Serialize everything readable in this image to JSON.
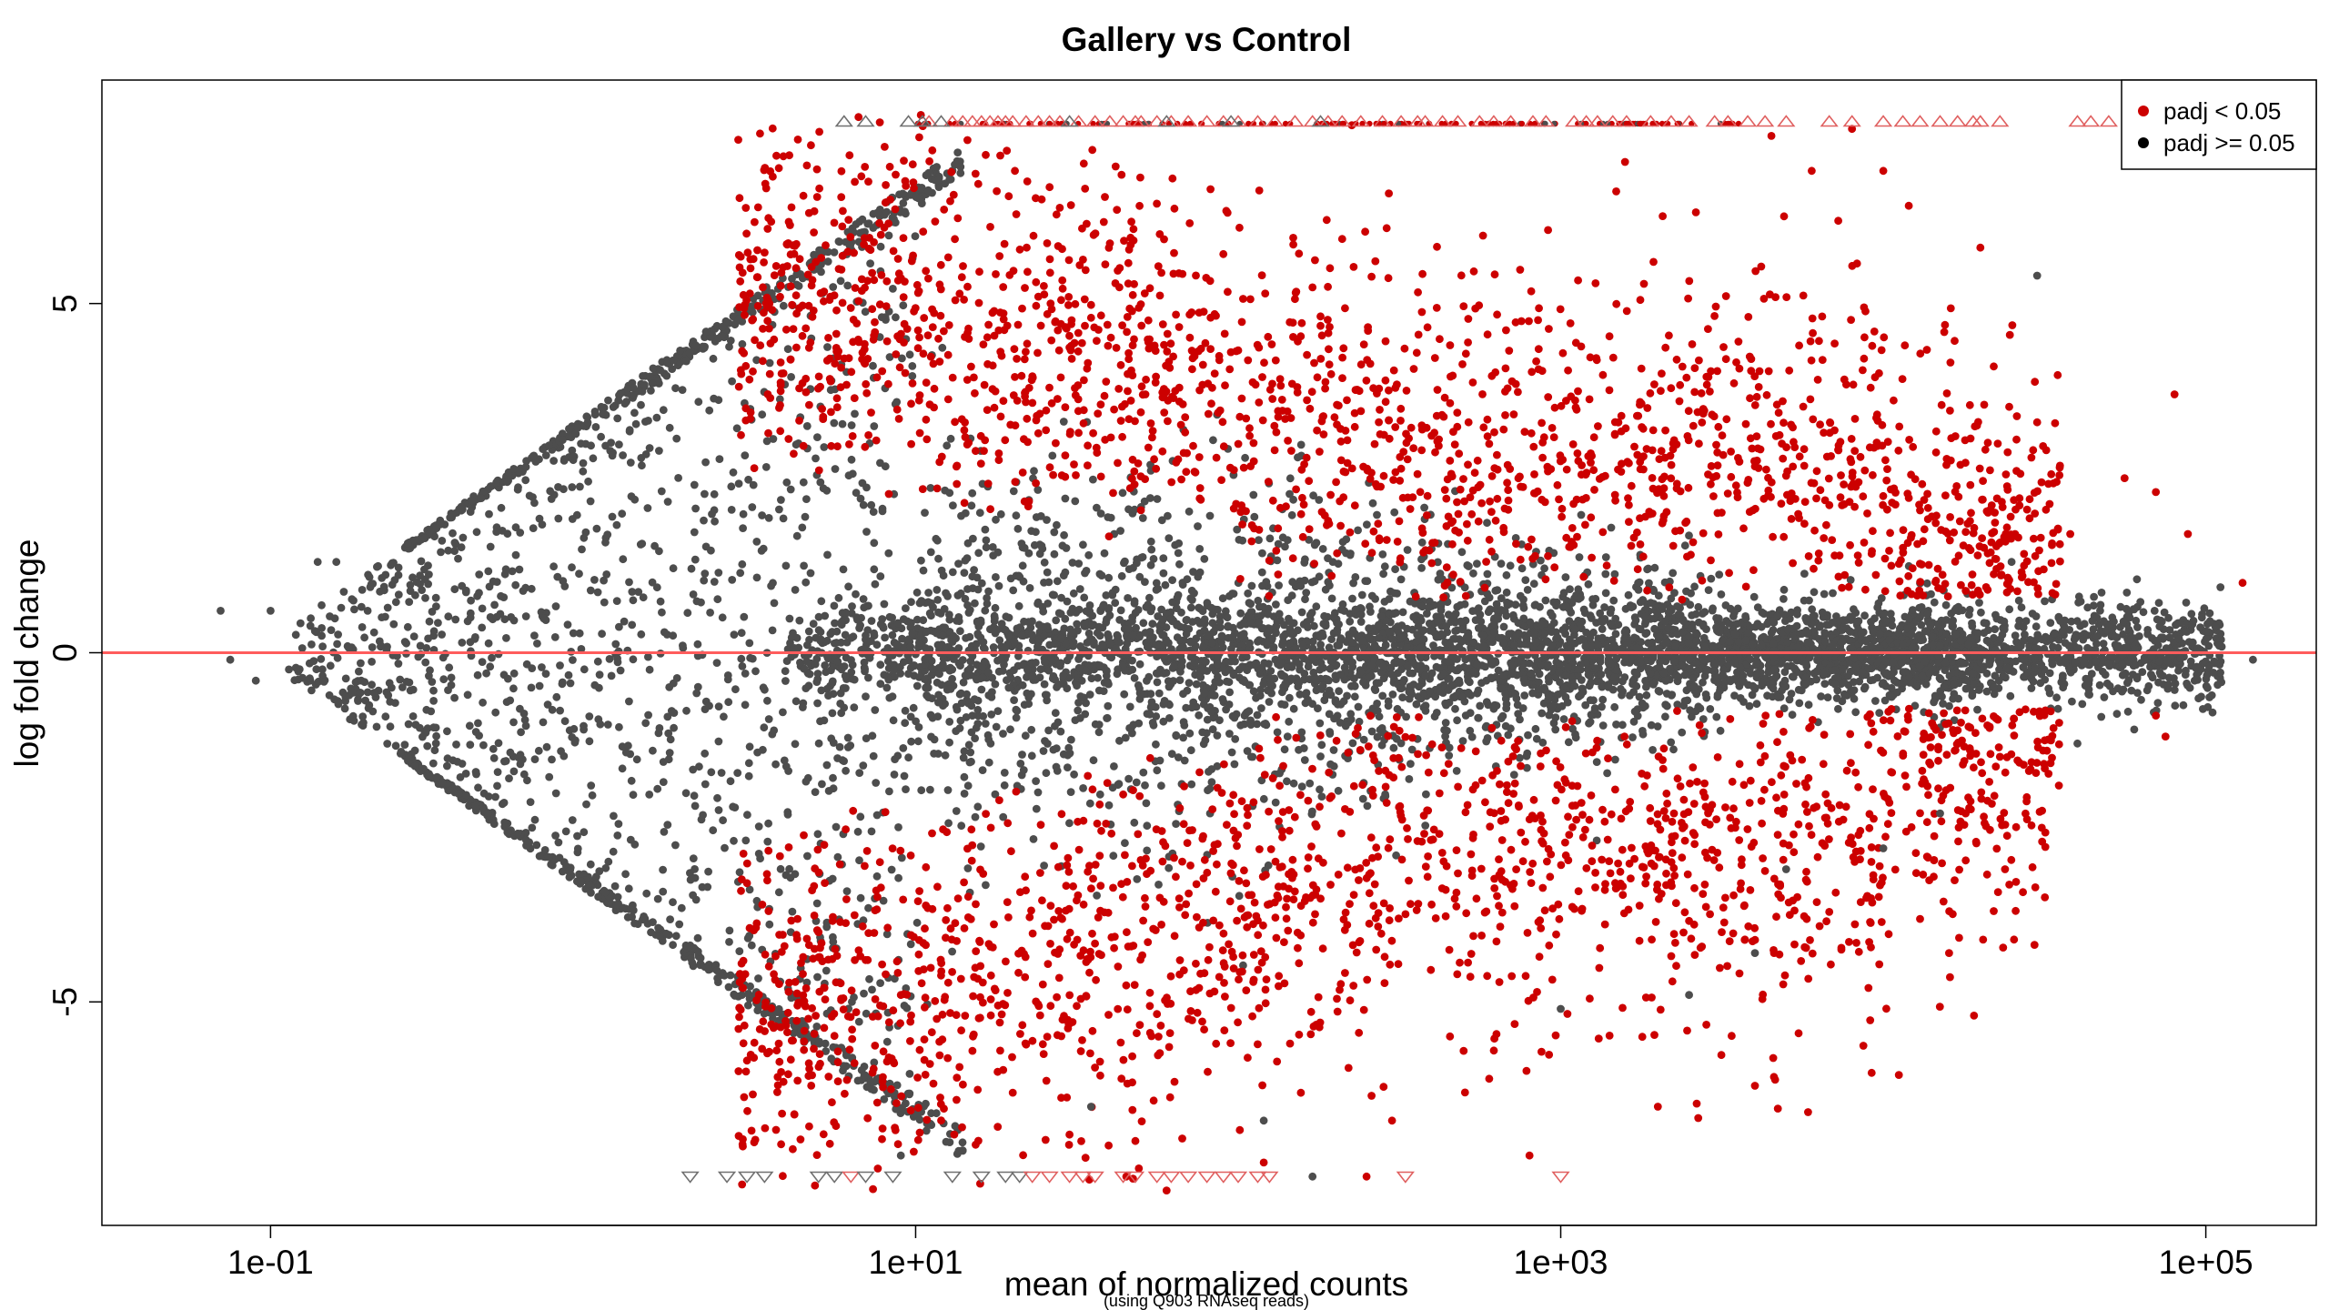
{
  "chart_data": {
    "type": "scatter",
    "title": "Gallery vs Control",
    "subtitle": "(using Q903 RNAseq reads)",
    "xlabel": "mean of normalized counts",
    "ylabel": "log fold change",
    "x_scale": "log10",
    "xlim": [
      0.03,
      220000
    ],
    "ylim": [
      -8.2,
      8.2
    ],
    "x_ticks": [
      0.1,
      10,
      1000,
      100000
    ],
    "x_tick_labels": [
      "1e-01",
      "1e+01",
      "1e+03",
      "1e+05"
    ],
    "y_ticks": [
      -5,
      0,
      5
    ],
    "y_tick_labels": [
      "-5",
      "0",
      "5"
    ],
    "reference_line": {
      "y": 0,
      "color": "#ff5c5c"
    },
    "clip_value": 7.75,
    "legend": {
      "position": "top-right",
      "entries": [
        {
          "label": "padj < 0.05",
          "color": "#cc0000"
        },
        {
          "label": "padj >= 0.05",
          "color": "#000000"
        }
      ]
    },
    "series": [
      {
        "name": "padj < 0.05",
        "color": "#cc0000",
        "highlight_points": [
          [
            80000,
            3.7
          ],
          [
            130000,
            1.0
          ],
          [
            88000,
            1.7
          ],
          [
            70000,
            2.3
          ],
          [
            56000,
            2.5
          ],
          [
            38000,
            1.7
          ],
          [
            32000,
            2.9
          ],
          [
            30000,
            3.3
          ],
          [
            22000,
            4.1
          ],
          [
            20000,
            5.8
          ],
          [
            12000,
            6.4
          ],
          [
            10000,
            6.9
          ],
          [
            8000,
            7.5
          ],
          [
            6000,
            6.9
          ],
          [
            4500,
            7.4
          ],
          [
            14000,
            -1.6
          ],
          [
            18000,
            -2.3
          ],
          [
            22000,
            -3.7
          ],
          [
            16000,
            -4.3
          ],
          [
            9000,
            -4.8
          ],
          [
            4000,
            -6.2
          ],
          [
            2000,
            -6.5
          ],
          [
            800,
            -7.2
          ],
          [
            600,
            -6.1
          ],
          [
            500,
            -5.7
          ],
          [
            300,
            -6.7
          ],
          [
            250,
            -7.5
          ],
          [
            120,
            -7.3
          ],
          [
            60,
            -7.7
          ],
          [
            45,
            -7.5
          ],
          [
            30,
            -6.9
          ],
          [
            20,
            -6.3
          ],
          [
            15,
            -5.7
          ],
          [
            9,
            -4.9
          ],
          [
            7,
            -4.4
          ],
          [
            5,
            -4.0
          ],
          [
            3.5,
            -3.7
          ],
          [
            3.0,
            -3.3
          ],
          [
            75000,
            -1.2
          ],
          [
            70000,
            -0.9
          ]
        ]
      },
      {
        "name": "padj >= 0.05",
        "color": "#4d4d4d",
        "highlight_points": [
          [
            0.07,
            0.6
          ],
          [
            0.075,
            -0.1
          ],
          [
            0.09,
            -0.4
          ],
          [
            0.1,
            0.6
          ],
          [
            0.14,
            1.3
          ],
          [
            0.16,
            1.3
          ],
          [
            0.17,
            -0.8
          ],
          [
            0.2,
            0.6
          ],
          [
            0.22,
            0.1
          ],
          [
            30000,
            5.4
          ],
          [
            25000,
            1.3
          ],
          [
            45000,
            0.8
          ],
          [
            100000,
            0.3
          ],
          [
            110000,
            0.1
          ],
          [
            140000,
            -0.1
          ],
          [
            60000,
            -1.1
          ],
          [
            40000,
            -1.3
          ],
          [
            19000,
            -0.3
          ],
          [
            15000,
            -2.3
          ],
          [
            10000,
            -2.8
          ],
          [
            5000,
            -3.1
          ],
          [
            4000,
            -4.3
          ],
          [
            2500,
            -4.9
          ],
          [
            1000,
            -5.1
          ],
          [
            170,
            -7.5
          ],
          [
            120,
            -6.7
          ],
          [
            35,
            -6.5
          ],
          [
            9,
            -7.2
          ]
        ]
      }
    ],
    "clipped_up": [
      {
        "x": 7,
        "sig": false
      },
      [
        11,
        true
      ],
      [
        13,
        true
      ],
      [
        14,
        true
      ],
      [
        15,
        true
      ],
      [
        16,
        true
      ],
      [
        17,
        true
      ],
      [
        18,
        true
      ],
      [
        19,
        true
      ],
      [
        20,
        true
      ],
      [
        22,
        true
      ],
      [
        24,
        true
      ],
      [
        26,
        true
      ],
      [
        28,
        true
      ],
      [
        32,
        true
      ],
      [
        36,
        true
      ],
      [
        40,
        true
      ],
      [
        44,
        true
      ],
      [
        48,
        true
      ],
      [
        50,
        true
      ],
      [
        56,
        true
      ],
      [
        62,
        true
      ],
      [
        70,
        true
      ],
      [
        80,
        true
      ],
      [
        90,
        true
      ],
      [
        100,
        true
      ],
      [
        115,
        true
      ],
      [
        130,
        true
      ],
      [
        150,
        true
      ],
      [
        170,
        true
      ],
      [
        190,
        true
      ],
      [
        210,
        true
      ],
      [
        240,
        true
      ],
      [
        280,
        true
      ],
      [
        320,
        true
      ],
      [
        360,
        true
      ],
      [
        380,
        true
      ],
      [
        430,
        true
      ],
      [
        480,
        true
      ],
      [
        560,
        true
      ],
      [
        620,
        true
      ],
      [
        700,
        true
      ],
      [
        820,
        true
      ],
      [
        900,
        true
      ],
      [
        1100,
        true
      ],
      [
        1200,
        true
      ],
      [
        1300,
        true
      ],
      [
        1450,
        true
      ],
      [
        1600,
        true
      ],
      [
        1900,
        true
      ],
      [
        2200,
        true
      ],
      [
        2500,
        true
      ],
      [
        3000,
        true
      ],
      [
        3300,
        true
      ],
      [
        3800,
        true
      ],
      [
        4300,
        true
      ],
      [
        5000,
        true
      ],
      [
        6800,
        true
      ],
      [
        8000,
        true
      ],
      [
        10000,
        true
      ],
      [
        11500,
        true
      ],
      [
        13000,
        true
      ],
      [
        15000,
        true
      ],
      [
        17000,
        true
      ],
      [
        19000,
        true
      ],
      [
        20000,
        true
      ],
      [
        23000,
        true
      ],
      [
        40000,
        true
      ],
      [
        44000,
        true
      ],
      [
        50000,
        true
      ],
      [
        6,
        false
      ],
      [
        9.5,
        false
      ],
      [
        10.5,
        false
      ],
      [
        12,
        false
      ],
      [
        30,
        false
      ],
      [
        60,
        false
      ],
      [
        95,
        false
      ],
      [
        180,
        false
      ]
    ],
    "clipped_down": [
      [
        2.0,
        false
      ],
      [
        2.6,
        false
      ],
      [
        3.0,
        false
      ],
      [
        3.4,
        false
      ],
      [
        5.0,
        false
      ],
      [
        5.6,
        false
      ],
      [
        6.3,
        true
      ],
      [
        7.0,
        false
      ],
      [
        8.5,
        false
      ],
      [
        13,
        false
      ],
      [
        16,
        false
      ],
      [
        19,
        false
      ],
      [
        21,
        false
      ],
      [
        23,
        true
      ],
      [
        26,
        true
      ],
      [
        30,
        true
      ],
      [
        33,
        true
      ],
      [
        36,
        true
      ],
      [
        44,
        true
      ],
      [
        48,
        true
      ],
      [
        56,
        true
      ],
      [
        62,
        true
      ],
      [
        70,
        true
      ],
      [
        80,
        true
      ],
      [
        90,
        true
      ],
      [
        100,
        true
      ],
      [
        115,
        true
      ],
      [
        125,
        true
      ],
      [
        330,
        true
      ],
      [
        1000,
        true
      ]
    ]
  }
}
